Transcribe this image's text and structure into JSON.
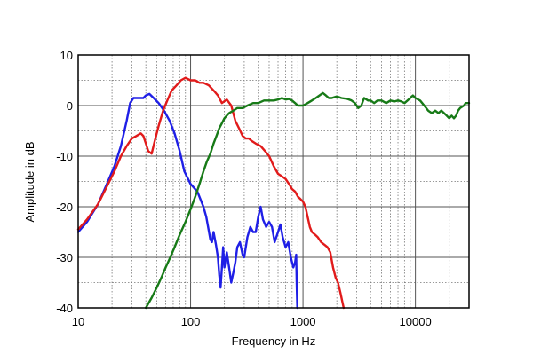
{
  "chart_data": {
    "type": "line",
    "xlabel": "Frequency in Hz",
    "ylabel": "Amplitude in dB",
    "xscale": "log",
    "xlim": [
      10,
      30000
    ],
    "ylim": [
      -40,
      10
    ],
    "grid": true,
    "x_ticks": [
      {
        "value": 10,
        "label": "10"
      },
      {
        "value": 100,
        "label": "100"
      },
      {
        "value": 1000,
        "label": "1000"
      },
      {
        "value": 10000,
        "label": "10000"
      }
    ],
    "y_ticks": [
      {
        "value": 10,
        "label": "10"
      },
      {
        "value": 0,
        "label": "0"
      },
      {
        "value": -10,
        "label": "-10"
      },
      {
        "value": -20,
        "label": "-20"
      },
      {
        "value": -30,
        "label": "-30"
      },
      {
        "value": -40,
        "label": "-40"
      }
    ],
    "series": [
      {
        "color": "#1f1fe6",
        "points": [
          [
            10,
            -25
          ],
          [
            12,
            -23
          ],
          [
            15,
            -19.5
          ],
          [
            18,
            -15.5
          ],
          [
            21,
            -12
          ],
          [
            24,
            -8
          ],
          [
            27,
            -3
          ],
          [
            29,
            0.5
          ],
          [
            31,
            1.5
          ],
          [
            34,
            1.5
          ],
          [
            38,
            1.5
          ],
          [
            40,
            2
          ],
          [
            43,
            2.3
          ],
          [
            47,
            1.5
          ],
          [
            52,
            0.5
          ],
          [
            58,
            -1
          ],
          [
            65,
            -3
          ],
          [
            72,
            -5.5
          ],
          [
            80,
            -9
          ],
          [
            88,
            -13
          ],
          [
            100,
            -15.5
          ],
          [
            115,
            -17
          ],
          [
            130,
            -20
          ],
          [
            138,
            -22
          ],
          [
            150,
            -26.5
          ],
          [
            155,
            -27
          ],
          [
            160,
            -25
          ],
          [
            168,
            -27.5
          ],
          [
            175,
            -30
          ],
          [
            180,
            -33.5
          ],
          [
            185,
            -36
          ],
          [
            190,
            -32
          ],
          [
            195,
            -28
          ],
          [
            200,
            -32
          ],
          [
            210,
            -29
          ],
          [
            220,
            -32
          ],
          [
            230,
            -35
          ],
          [
            240,
            -33
          ],
          [
            250,
            -31
          ],
          [
            260,
            -28
          ],
          [
            275,
            -27
          ],
          [
            290,
            -29.5
          ],
          [
            300,
            -30
          ],
          [
            320,
            -26
          ],
          [
            340,
            -24
          ],
          [
            360,
            -25
          ],
          [
            380,
            -25
          ],
          [
            400,
            -22
          ],
          [
            420,
            -20
          ],
          [
            440,
            -22.5
          ],
          [
            470,
            -24
          ],
          [
            500,
            -23
          ],
          [
            530,
            -24
          ],
          [
            560,
            -27
          ],
          [
            600,
            -25
          ],
          [
            630,
            -23.5
          ],
          [
            660,
            -26
          ],
          [
            700,
            -28
          ],
          [
            740,
            -27
          ],
          [
            780,
            -30
          ],
          [
            820,
            -32
          ],
          [
            850,
            -31
          ],
          [
            870,
            -29.5
          ],
          [
            880,
            -36
          ],
          [
            890,
            -40
          ]
        ]
      },
      {
        "color": "#e11b1b",
        "points": [
          [
            10,
            -24.5
          ],
          [
            12,
            -22.5
          ],
          [
            15,
            -19.5
          ],
          [
            18,
            -16
          ],
          [
            21,
            -13
          ],
          [
            24,
            -10
          ],
          [
            27,
            -8
          ],
          [
            30,
            -6.5
          ],
          [
            33,
            -6
          ],
          [
            36,
            -5.5
          ],
          [
            38,
            -6
          ],
          [
            40,
            -7.5
          ],
          [
            42,
            -9
          ],
          [
            45,
            -9.5
          ],
          [
            48,
            -7
          ],
          [
            52,
            -4
          ],
          [
            57,
            -1
          ],
          [
            62,
            1
          ],
          [
            68,
            3
          ],
          [
            75,
            4
          ],
          [
            82,
            5
          ],
          [
            90,
            5.5
          ],
          [
            100,
            5
          ],
          [
            110,
            5
          ],
          [
            120,
            4.5
          ],
          [
            130,
            4.5
          ],
          [
            145,
            4
          ],
          [
            160,
            3
          ],
          [
            175,
            2
          ],
          [
            190,
            0.5
          ],
          [
            210,
            1.2
          ],
          [
            230,
            0
          ],
          [
            250,
            -3
          ],
          [
            270,
            -4.5
          ],
          [
            290,
            -6
          ],
          [
            310,
            -6.5
          ],
          [
            330,
            -6.5
          ],
          [
            350,
            -7
          ],
          [
            380,
            -7.5
          ],
          [
            420,
            -8
          ],
          [
            460,
            -9
          ],
          [
            500,
            -10
          ],
          [
            550,
            -12
          ],
          [
            600,
            -13.5
          ],
          [
            650,
            -14
          ],
          [
            700,
            -14.5
          ],
          [
            750,
            -15.5
          ],
          [
            800,
            -16.5
          ],
          [
            850,
            -17
          ],
          [
            900,
            -18
          ],
          [
            950,
            -18.5
          ],
          [
            1000,
            -19
          ],
          [
            1050,
            -20
          ],
          [
            1100,
            -22
          ],
          [
            1150,
            -24
          ],
          [
            1200,
            -25
          ],
          [
            1280,
            -25.5
          ],
          [
            1350,
            -26
          ],
          [
            1450,
            -27
          ],
          [
            1550,
            -27.5
          ],
          [
            1650,
            -28
          ],
          [
            1750,
            -29
          ],
          [
            1850,
            -32
          ],
          [
            1950,
            -34
          ],
          [
            2050,
            -35
          ],
          [
            2150,
            -37
          ],
          [
            2250,
            -39
          ],
          [
            2300,
            -40
          ]
        ]
      },
      {
        "color": "#177a17",
        "points": [
          [
            40,
            -40
          ],
          [
            45,
            -38
          ],
          [
            50,
            -36
          ],
          [
            55,
            -34
          ],
          [
            60,
            -32
          ],
          [
            66,
            -30
          ],
          [
            72,
            -28
          ],
          [
            80,
            -25.5
          ],
          [
            90,
            -23
          ],
          [
            100,
            -20.5
          ],
          [
            110,
            -18
          ],
          [
            120,
            -15.5
          ],
          [
            130,
            -13
          ],
          [
            140,
            -11
          ],
          [
            150,
            -9.5
          ],
          [
            160,
            -7.5
          ],
          [
            170,
            -6
          ],
          [
            180,
            -4.5
          ],
          [
            190,
            -3.5
          ],
          [
            200,
            -2.5
          ],
          [
            220,
            -1.5
          ],
          [
            240,
            -1
          ],
          [
            260,
            -0.5
          ],
          [
            290,
            -0.5
          ],
          [
            320,
            0
          ],
          [
            360,
            0.5
          ],
          [
            400,
            0.5
          ],
          [
            450,
            1
          ],
          [
            500,
            1
          ],
          [
            550,
            1
          ],
          [
            600,
            1.2
          ],
          [
            650,
            1.5
          ],
          [
            700,
            1.2
          ],
          [
            750,
            1.3
          ],
          [
            800,
            1
          ],
          [
            850,
            0.5
          ],
          [
            900,
            0
          ],
          [
            950,
            0
          ],
          [
            1000,
            0
          ],
          [
            1100,
            0.5
          ],
          [
            1200,
            1
          ],
          [
            1300,
            1.5
          ],
          [
            1400,
            2
          ],
          [
            1500,
            2.5
          ],
          [
            1600,
            2
          ],
          [
            1700,
            1.5
          ],
          [
            1800,
            1.5
          ],
          [
            2000,
            1.8
          ],
          [
            2200,
            1.5
          ],
          [
            2500,
            1.3
          ],
          [
            2700,
            1
          ],
          [
            2900,
            0.5
          ],
          [
            3100,
            -0.5
          ],
          [
            3300,
            0
          ],
          [
            3500,
            1.5
          ],
          [
            3800,
            1
          ],
          [
            4000,
            1
          ],
          [
            4300,
            0.5
          ],
          [
            4600,
            1
          ],
          [
            5000,
            1
          ],
          [
            5500,
            0.5
          ],
          [
            6000,
            1
          ],
          [
            6500,
            0.8
          ],
          [
            7000,
            1
          ],
          [
            7500,
            0.8
          ],
          [
            8000,
            0.5
          ],
          [
            8500,
            1
          ],
          [
            9000,
            1.5
          ],
          [
            9500,
            2
          ],
          [
            10000,
            1.5
          ],
          [
            11000,
            1
          ],
          [
            12000,
            0
          ],
          [
            13000,
            -1
          ],
          [
            14000,
            -1.5
          ],
          [
            15000,
            -1
          ],
          [
            16000,
            -1.5
          ],
          [
            17000,
            -1
          ],
          [
            18000,
            -1.5
          ],
          [
            19000,
            -2
          ],
          [
            20000,
            -2.5
          ],
          [
            21000,
            -2
          ],
          [
            22000,
            -2.5
          ],
          [
            23000,
            -2
          ],
          [
            24000,
            -1
          ],
          [
            25000,
            -0.5
          ],
          [
            27000,
            0
          ],
          [
            28000,
            0.5
          ],
          [
            30000,
            0.5
          ]
        ]
      }
    ]
  }
}
